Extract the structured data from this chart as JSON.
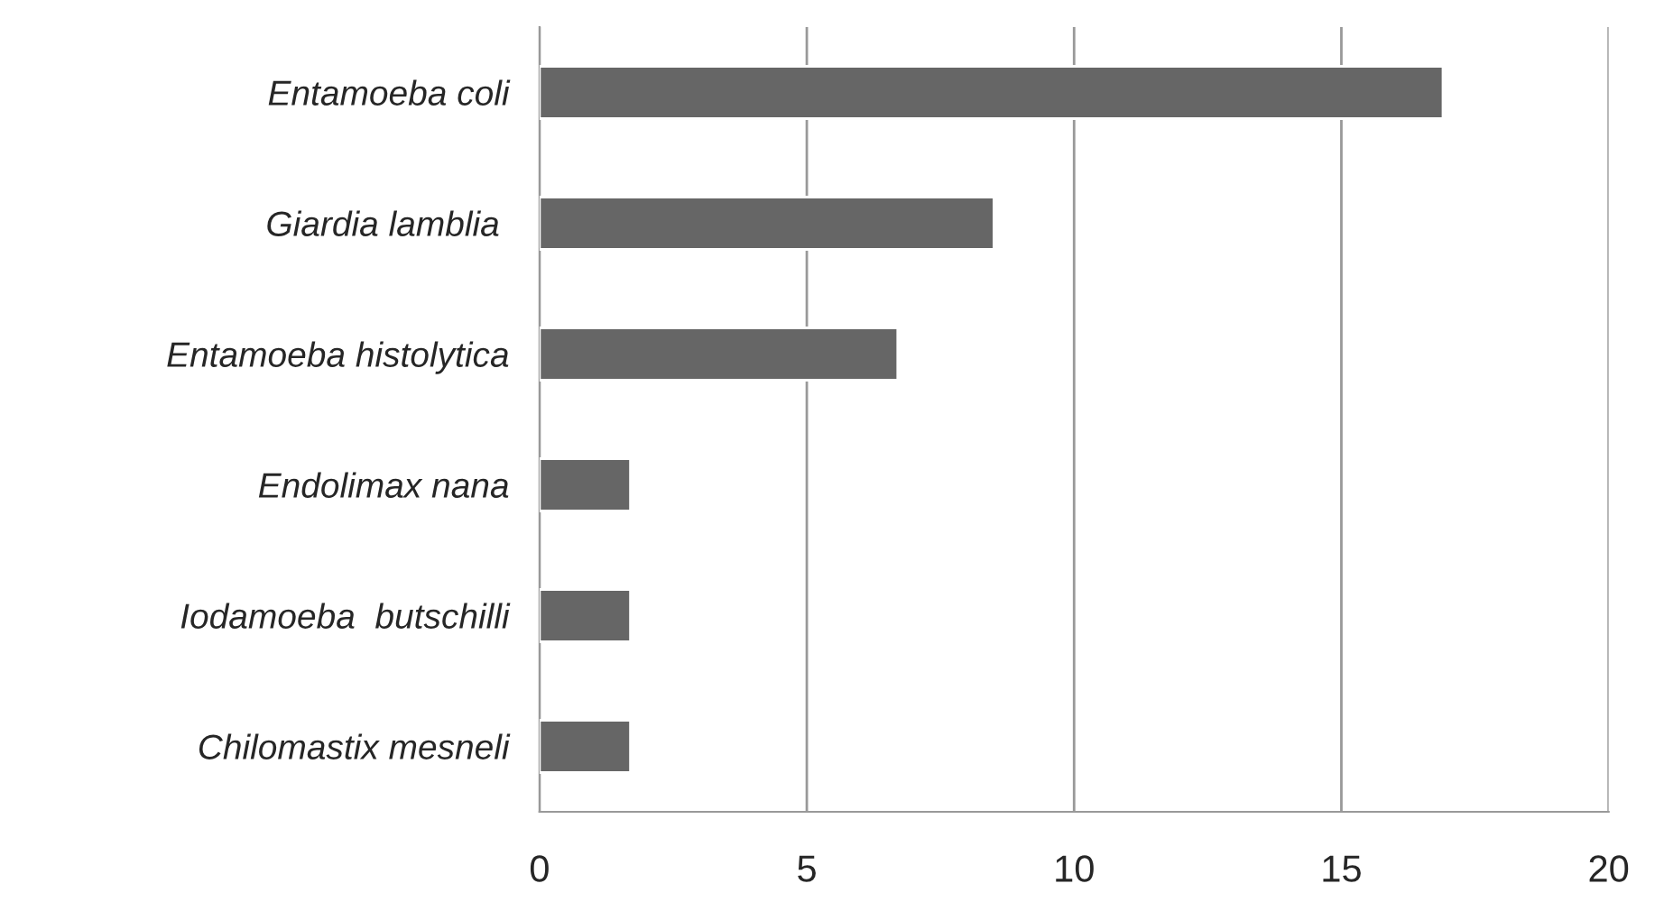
{
  "chart_data": {
    "type": "bar",
    "orientation": "horizontal",
    "categories": [
      "Entamoeba coli",
      "Giardia lamblia ",
      "Entamoeba histolytica",
      "Endolimax nana",
      "Iodamoeba  butschilli",
      "Chilomastix mesneli"
    ],
    "values": [
      16.9,
      8.5,
      6.7,
      1.7,
      1.7,
      1.7
    ],
    "color": "#666666",
    "xlim": [
      0,
      20
    ],
    "xticks": [
      0,
      5,
      10,
      15,
      20
    ],
    "grid": "x"
  }
}
